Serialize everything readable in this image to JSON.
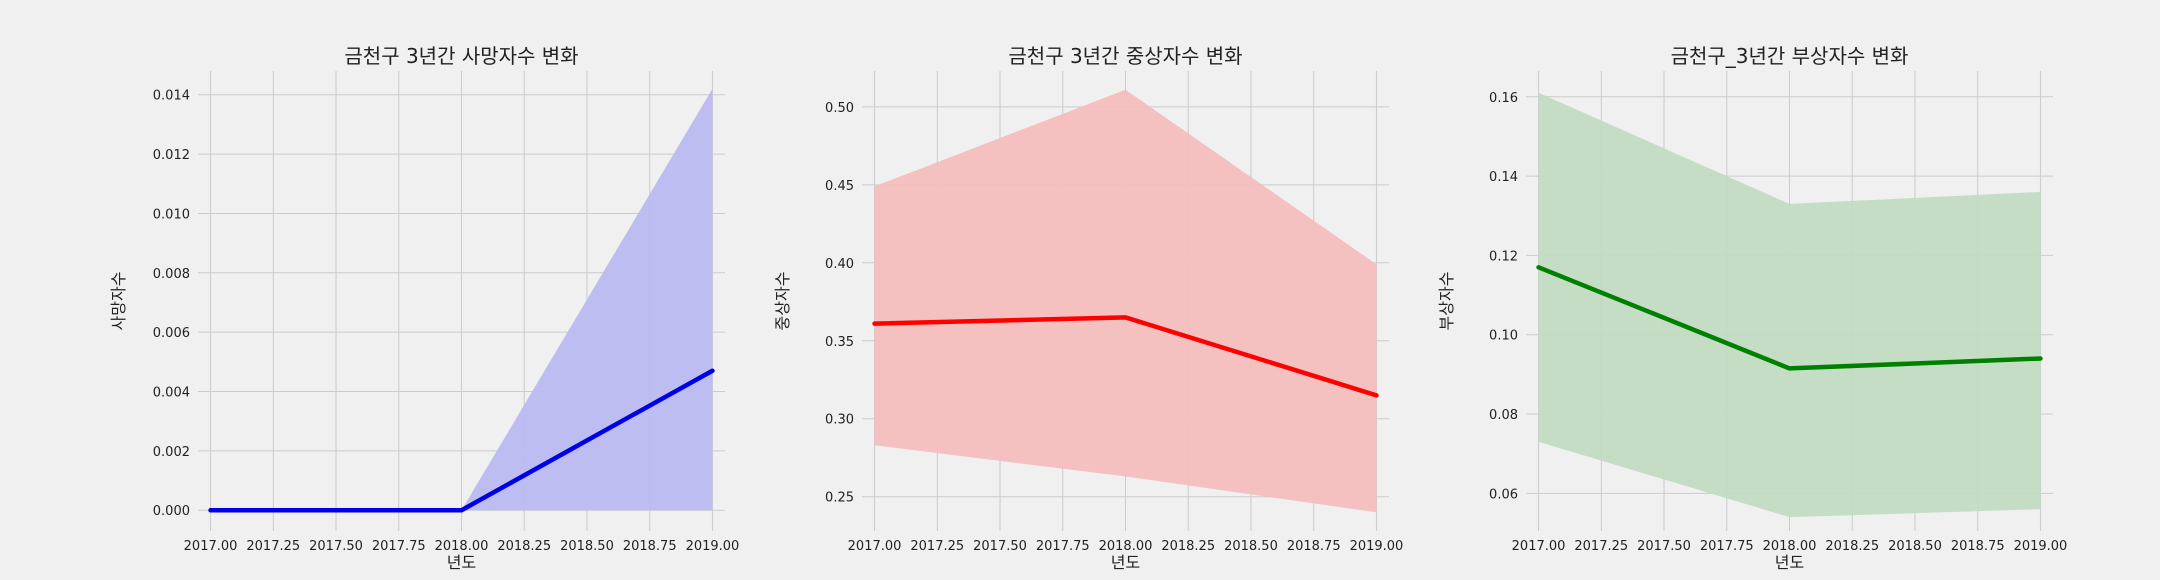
{
  "chart_data": [
    {
      "type": "line",
      "title": "금천구 3년간 사망자수 변화",
      "xlabel": "년도",
      "ylabel": "사망자수",
      "x": [
        2017,
        2018,
        2019
      ],
      "series": [
        {
          "values": [
            0.0,
            0.0,
            0.0047
          ],
          "ci_low": [
            0.0,
            0.0,
            0.0
          ],
          "ci_high": [
            0.0,
            0.0,
            0.0142
          ]
        }
      ],
      "xlim": [
        2016.95,
        2019.05
      ],
      "ylim": [
        -0.0007,
        0.0148
      ],
      "xticks": [
        2017.0,
        2017.25,
        2017.5,
        2017.75,
        2018.0,
        2018.25,
        2018.5,
        2018.75,
        2019.0
      ],
      "xtick_labels": [
        "2017.00",
        "2017.25",
        "2017.50",
        "2017.75",
        "2018.00",
        "2018.25",
        "2018.50",
        "2018.75",
        "2019.00"
      ],
      "yticks": [
        0.0,
        0.002,
        0.004,
        0.006,
        0.008,
        0.01,
        0.012,
        0.014
      ],
      "ytick_labels": [
        "0.000",
        "0.002",
        "0.004",
        "0.006",
        "0.008",
        "0.010",
        "0.012",
        "0.014"
      ],
      "line_color": "#0000e6",
      "band_color": "#b9b9f0",
      "grid": true
    },
    {
      "type": "line",
      "title": "금천구 3년간 중상자수 변화",
      "xlabel": "년도",
      "ylabel": "중상자수",
      "x": [
        2017,
        2018,
        2019
      ],
      "series": [
        {
          "values": [
            0.361,
            0.365,
            0.315
          ],
          "ci_low": [
            0.283,
            0.263,
            0.24
          ],
          "ci_high": [
            0.449,
            0.511,
            0.399
          ]
        }
      ],
      "xlim": [
        2016.95,
        2019.05
      ],
      "ylim": [
        0.228,
        0.523
      ],
      "xticks": [
        2017.0,
        2017.25,
        2017.5,
        2017.75,
        2018.0,
        2018.25,
        2018.5,
        2018.75,
        2019.0
      ],
      "xtick_labels": [
        "2017.00",
        "2017.25",
        "2017.50",
        "2017.75",
        "2018.00",
        "2018.25",
        "2018.50",
        "2018.75",
        "2019.00"
      ],
      "yticks": [
        0.25,
        0.3,
        0.35,
        0.4,
        0.45,
        0.5
      ],
      "ytick_labels": [
        "0.25",
        "0.30",
        "0.35",
        "0.40",
        "0.45",
        "0.50"
      ],
      "line_color": "#ff0000",
      "band_color": "#f3bdbd",
      "grid": true
    },
    {
      "type": "line",
      "title": "금천구_3년간 부상자수 변화",
      "xlabel": "년도",
      "ylabel": "부상자수",
      "x": [
        2017,
        2018,
        2019
      ],
      "series": [
        {
          "values": [
            0.117,
            0.0915,
            0.094
          ],
          "ci_low": [
            0.073,
            0.054,
            0.056
          ],
          "ci_high": [
            0.161,
            0.133,
            0.136
          ]
        }
      ],
      "xlim": [
        2016.95,
        2019.05
      ],
      "ylim": [
        0.0505,
        0.1665
      ],
      "xticks": [
        2017.0,
        2017.25,
        2017.5,
        2017.75,
        2018.0,
        2018.25,
        2018.5,
        2018.75,
        2019.0
      ],
      "xtick_labels": [
        "2017.00",
        "2017.25",
        "2017.50",
        "2017.75",
        "2018.00",
        "2018.25",
        "2018.50",
        "2018.75",
        "2019.00"
      ],
      "yticks": [
        0.06,
        0.08,
        0.1,
        0.12,
        0.14,
        0.16
      ],
      "ytick_labels": [
        "0.06",
        "0.08",
        "0.10",
        "0.12",
        "0.14",
        "0.16"
      ],
      "line_color": "#008000",
      "band_color": "#c1dbc1",
      "grid": true
    }
  ]
}
